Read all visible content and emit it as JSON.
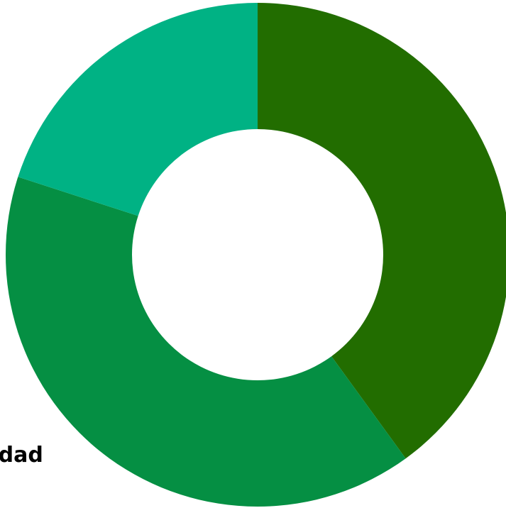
{
  "chart_data": {
    "type": "pie",
    "style": "donut",
    "slices": [
      {
        "value": 40,
        "color": "#226d00"
      },
      {
        "value": 40,
        "color": "#058f43"
      },
      {
        "value": 20,
        "color": "#00b284"
      }
    ],
    "start_angle_deg": 0,
    "direction": "clockwise"
  },
  "visible_text": {
    "partial_label": "nidad"
  }
}
